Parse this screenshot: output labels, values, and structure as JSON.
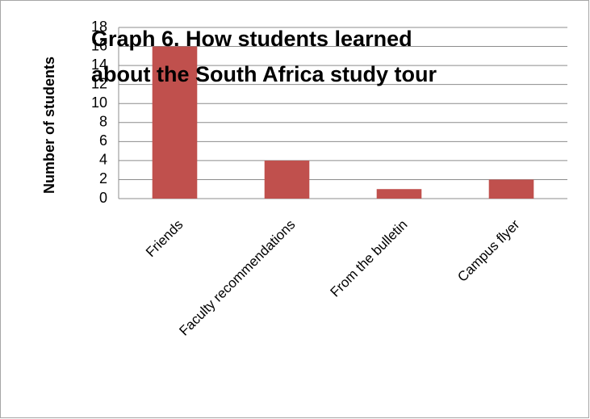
{
  "chart_data": {
    "type": "bar",
    "title": [
      "Graph 6. How students learned",
      "about the South Africa study tour"
    ],
    "y_label": "Number of students",
    "categories": [
      "Friends",
      "Faculty recommendations",
      "From the  bulletin",
      "Campus flyer"
    ],
    "values": [
      16,
      4,
      1,
      2
    ],
    "color": "#c0504d",
    "ylim": [
      0,
      18
    ],
    "yticks": [
      0,
      2,
      4,
      6,
      8,
      10,
      12,
      14,
      16,
      18
    ],
    "grid": true
  }
}
